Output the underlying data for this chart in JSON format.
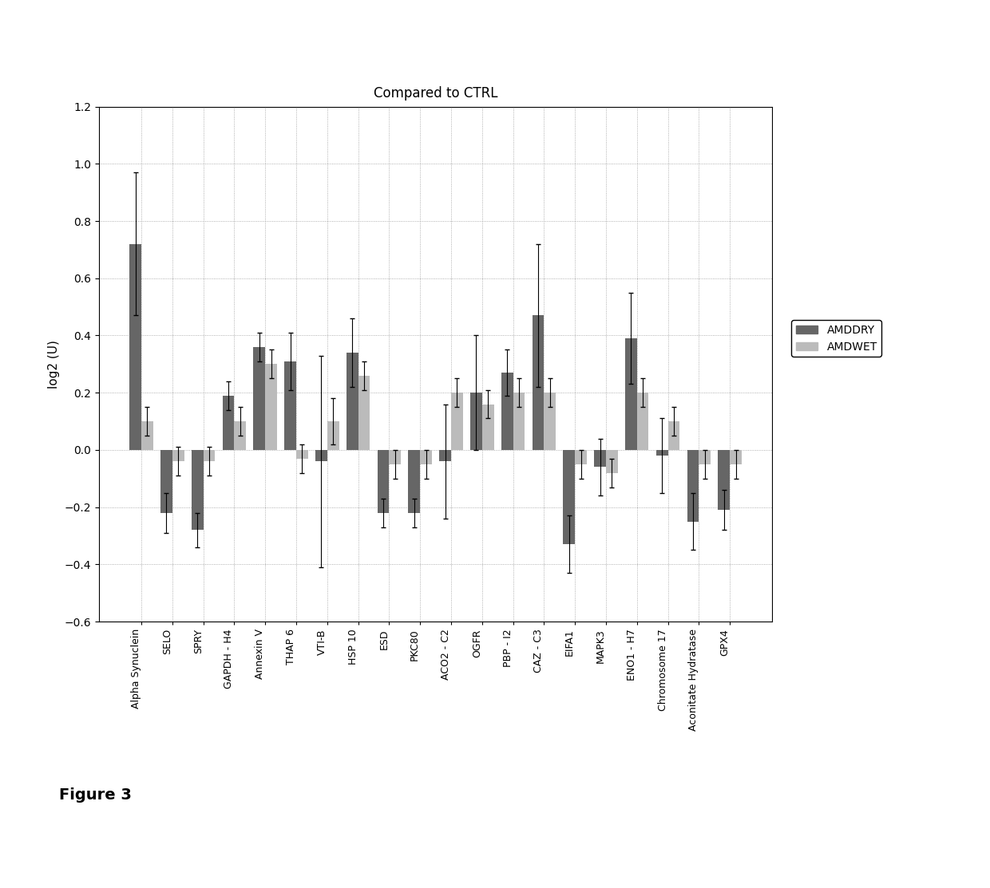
{
  "title": "Compared to CTRL",
  "ylabel": "log2 (U)",
  "categories": [
    "Alpha Synuclein",
    "SELO",
    "SPRY",
    "GAPDH - H4",
    "Annexin V",
    "THAP 6",
    "VTI-B",
    "HSP 10",
    "ESD",
    "PKC80",
    "ACO2 - C2",
    "OGFR",
    "PBP - I2",
    "CAZ - C3",
    "EIFA1",
    "MAPK3",
    "ENO1 - H7",
    "Chromosome 17",
    "Aconitate Hydratase",
    "GPX4"
  ],
  "amddry_values": [
    0.72,
    -0.22,
    -0.28,
    0.19,
    0.36,
    0.31,
    -0.04,
    0.34,
    -0.22,
    -0.22,
    -0.04,
    0.2,
    0.27,
    0.47,
    -0.33,
    -0.06,
    0.39,
    -0.02,
    -0.25,
    -0.21
  ],
  "amdwet_values": [
    0.1,
    -0.04,
    -0.04,
    0.1,
    0.3,
    -0.03,
    0.1,
    0.26,
    -0.05,
    -0.05,
    0.2,
    0.16,
    0.2,
    0.2,
    -0.05,
    -0.08,
    0.2,
    0.1,
    -0.05,
    -0.05
  ],
  "amddry_errors": [
    0.25,
    0.07,
    0.06,
    0.05,
    0.05,
    0.1,
    0.37,
    0.12,
    0.05,
    0.05,
    0.2,
    0.2,
    0.08,
    0.25,
    0.1,
    0.1,
    0.16,
    0.13,
    0.1,
    0.07
  ],
  "amdwet_errors": [
    0.05,
    0.05,
    0.05,
    0.05,
    0.05,
    0.05,
    0.08,
    0.05,
    0.05,
    0.05,
    0.05,
    0.05,
    0.05,
    0.05,
    0.05,
    0.05,
    0.05,
    0.05,
    0.05,
    0.05
  ],
  "ylim": [
    -0.6,
    1.2
  ],
  "yticks": [
    -0.6,
    -0.4,
    -0.2,
    0.0,
    0.2,
    0.4,
    0.6,
    0.8,
    1.0,
    1.2
  ],
  "amddry_color": "#666666",
  "amdwet_color": "#bbbbbb",
  "bar_width": 0.38,
  "figure_size": [
    12.4,
    11.13
  ],
  "dpi": 100,
  "legend_labels": [
    "AMDDRY",
    "AMDWET"
  ],
  "figure_label": "Figure 3"
}
